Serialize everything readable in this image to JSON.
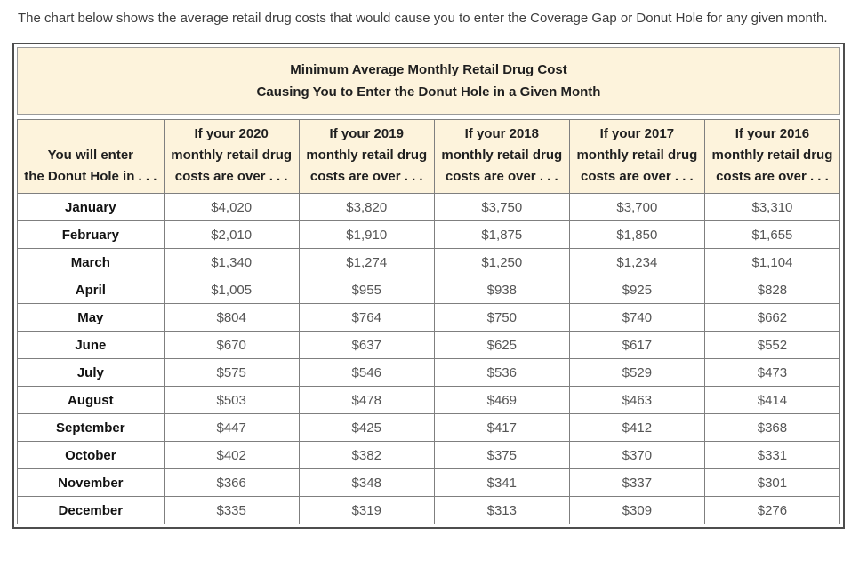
{
  "intro": "The chart below shows the average retail drug costs that would cause you to enter the Coverage Gap or Donut Hole for any given month.",
  "table": {
    "title_line1": "Minimum Average Monthly Retail Drug Cost",
    "title_line2": "Causing You to Enter the Donut Hole in a Given Month",
    "columns": [
      {
        "id": "month",
        "lines": [
          "You will enter",
          "the Donut Hole in . . ."
        ]
      },
      {
        "id": "2020",
        "lines": [
          "If your 2020",
          "monthly retail drug",
          "costs are over . . ."
        ]
      },
      {
        "id": "2019",
        "lines": [
          "If your 2019",
          "monthly retail drug",
          "costs are over . . ."
        ]
      },
      {
        "id": "2018",
        "lines": [
          "If your 2018",
          "monthly retail drug",
          "costs are over . . ."
        ]
      },
      {
        "id": "2017",
        "lines": [
          "If your 2017",
          "monthly retail drug",
          "costs are over . . ."
        ]
      },
      {
        "id": "2016",
        "lines": [
          "If your 2016",
          "monthly retail drug",
          "costs are over . . ."
        ]
      }
    ],
    "rows": [
      {
        "month": "January",
        "values": [
          "$4,020",
          "$3,820",
          "$3,750",
          "$3,700",
          "$3,310"
        ]
      },
      {
        "month": "February",
        "values": [
          "$2,010",
          "$1,910",
          "$1,875",
          "$1,850",
          "$1,655"
        ]
      },
      {
        "month": "March",
        "values": [
          "$1,340",
          "$1,274",
          "$1,250",
          "$1,234",
          "$1,104"
        ]
      },
      {
        "month": "April",
        "values": [
          "$1,005",
          "$955",
          "$938",
          "$925",
          "$828"
        ]
      },
      {
        "month": "May",
        "values": [
          "$804",
          "$764",
          "$750",
          "$740",
          "$662"
        ]
      },
      {
        "month": "June",
        "values": [
          "$670",
          "$637",
          "$625",
          "$617",
          "$552"
        ]
      },
      {
        "month": "July",
        "values": [
          "$575",
          "$546",
          "$536",
          "$529",
          "$473"
        ]
      },
      {
        "month": "August",
        "values": [
          "$503",
          "$478",
          "$469",
          "$463",
          "$414"
        ]
      },
      {
        "month": "September",
        "values": [
          "$447",
          "$425",
          "$417",
          "$412",
          "$368"
        ]
      },
      {
        "month": "October",
        "values": [
          "$402",
          "$382",
          "$375",
          "$370",
          "$331"
        ]
      },
      {
        "month": "November",
        "values": [
          "$366",
          "$348",
          "$341",
          "$337",
          "$301"
        ]
      },
      {
        "month": "December",
        "values": [
          "$335",
          "$319",
          "$313",
          "$309",
          "$276"
        ]
      }
    ]
  },
  "colors": {
    "header_bg": "#fdf3dc",
    "outer_border": "#4d4d4d",
    "grid_border": "#7f7f7f",
    "value_text": "#555555",
    "label_text": "#111111"
  },
  "chart_data": {
    "type": "table",
    "title": "Minimum Average Monthly Retail Drug Cost Causing You to Enter the Donut Hole in a Given Month",
    "categories": [
      "January",
      "February",
      "March",
      "April",
      "May",
      "June",
      "July",
      "August",
      "September",
      "October",
      "November",
      "December"
    ],
    "series": [
      {
        "name": "If your 2020 monthly retail drug costs are over . . .",
        "values": [
          4020,
          2010,
          1340,
          1005,
          804,
          670,
          575,
          503,
          447,
          402,
          366,
          335
        ]
      },
      {
        "name": "If your 2019 monthly retail drug costs are over . . .",
        "values": [
          3820,
          1910,
          1274,
          955,
          764,
          637,
          546,
          478,
          425,
          382,
          348,
          319
        ]
      },
      {
        "name": "If your 2018 monthly retail drug costs are over . . .",
        "values": [
          3750,
          1875,
          1250,
          938,
          750,
          625,
          536,
          469,
          417,
          375,
          341,
          313
        ]
      },
      {
        "name": "If your 2017 monthly retail drug costs are over . . .",
        "values": [
          3700,
          1850,
          1234,
          925,
          740,
          617,
          529,
          463,
          412,
          370,
          337,
          309
        ]
      },
      {
        "name": "If your 2016 monthly retail drug costs are over . . .",
        "values": [
          3310,
          1655,
          1104,
          828,
          662,
          552,
          473,
          414,
          368,
          331,
          301,
          276
        ]
      }
    ]
  }
}
